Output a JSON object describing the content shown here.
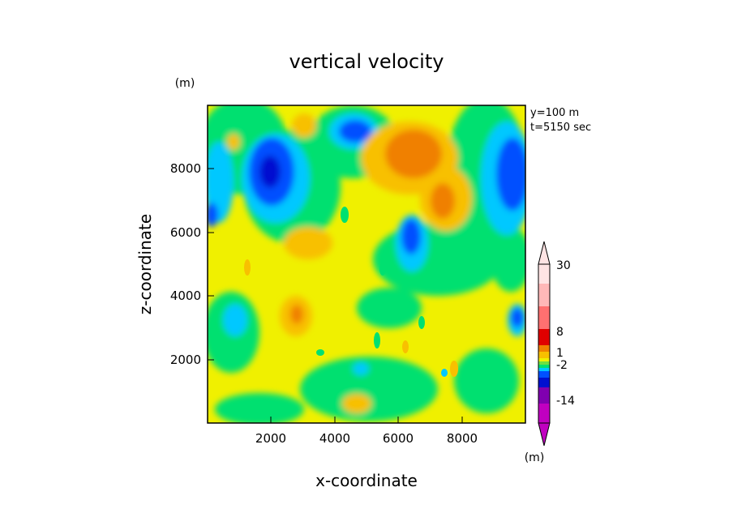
{
  "chart_data": {
    "type": "heatmap",
    "title": "vertical velocity",
    "xlabel": "x-coordinate",
    "ylabel": "z-coordinate",
    "y_unit_label": "(m)",
    "colorbar_unit_label": "(m)",
    "annotations": [
      "y=100 m",
      "t=5150 sec"
    ],
    "xlim": [
      0,
      10000
    ],
    "ylim": [
      0,
      10000
    ],
    "x_ticks": [
      2000,
      4000,
      6000,
      8000
    ],
    "y_ticks": [
      2000,
      4000,
      6000,
      8000
    ],
    "colorbar": {
      "tick_labels": [
        "30",
        "8",
        "1",
        "-2",
        "-14"
      ],
      "colors": [
        "#c000c0",
        "#8000b0",
        "#0010d0",
        "#0050ff",
        "#00c8ff",
        "#00e070",
        "#70e040",
        "#f0f000",
        "#f8c000",
        "#f08000",
        "#e00000",
        "#ff7070",
        "#ffb8b8",
        "#ffe4e4"
      ]
    }
  }
}
